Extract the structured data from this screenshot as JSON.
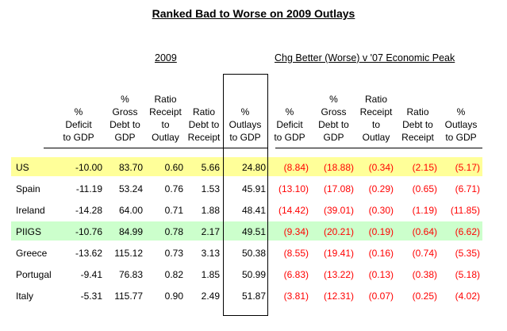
{
  "title": "Ranked Bad to Worse on 2009 Outlays",
  "colors": {
    "highlight_yellow": "#FFFF99",
    "highlight_green": "#CCFFCC",
    "negative_red": "#FF0000",
    "text_black": "#000000"
  },
  "chart_data": {
    "type": "table",
    "title": "Ranked Bad to Worse on 2009 Outlays",
    "section_headers": [
      "2009",
      "Chg Better (Worse) v '07 Economic Peak"
    ],
    "columns_per_section": [
      "% Deficit to GDP",
      "% Gross Debt to GDP",
      "Ratio Receipt to Outlay",
      "Ratio Debt to Receipt",
      "% Outlays to GDP"
    ],
    "header_lines_left": [
      "%\nDeficit\nto GDP",
      "%\nGross\nDebt to\nGDP",
      "Ratio\nReceipt\nto\nOutlay",
      "Ratio\nDebt to\nReceipt",
      "%\nOutlays\nto GDP"
    ],
    "header_lines_right": [
      "%\nDeficit\nto GDP",
      "%\nGross\nDebt to\nGDP",
      "Ratio\nReceipt\nto\nOutlay",
      "Ratio\nDebt to\nReceipt",
      "%\nOutlays\nto GDP"
    ],
    "rows": [
      {
        "label": "US",
        "highlight": "yellow",
        "values_2009": [
          "-10.00",
          "83.70",
          "0.60",
          "5.66",
          "24.80"
        ],
        "values_chg": [
          "(8.84)",
          "(18.88)",
          "(0.34)",
          "(2.15)",
          "(5.17)"
        ]
      },
      {
        "label": "Spain",
        "highlight": null,
        "values_2009": [
          "-11.19",
          "53.24",
          "0.76",
          "1.53",
          "45.91"
        ],
        "values_chg": [
          "(13.10)",
          "(17.08)",
          "(0.29)",
          "(0.65)",
          "(6.71)"
        ]
      },
      {
        "label": "Ireland",
        "highlight": null,
        "values_2009": [
          "-14.28",
          "64.00",
          "0.71",
          "1.88",
          "48.41"
        ],
        "values_chg": [
          "(14.42)",
          "(39.01)",
          "(0.30)",
          "(1.19)",
          "(11.85)"
        ]
      },
      {
        "label": "PIIGS",
        "highlight": "green",
        "values_2009": [
          "-10.76",
          "84.99",
          "0.78",
          "2.17",
          "49.51"
        ],
        "values_chg": [
          "(9.34)",
          "(20.21)",
          "(0.19)",
          "(0.64)",
          "(6.62)"
        ]
      },
      {
        "label": "Greece",
        "highlight": null,
        "values_2009": [
          "-13.62",
          "115.12",
          "0.73",
          "3.13",
          "50.38"
        ],
        "values_chg": [
          "(8.55)",
          "(19.41)",
          "(0.16)",
          "(0.74)",
          "(5.35)"
        ]
      },
      {
        "label": "Portugal",
        "highlight": null,
        "values_2009": [
          "-9.41",
          "76.83",
          "0.82",
          "1.85",
          "50.99"
        ],
        "values_chg": [
          "(6.83)",
          "(13.22)",
          "(0.13)",
          "(0.38)",
          "(5.18)"
        ]
      },
      {
        "label": "Italy",
        "highlight": null,
        "values_2009": [
          "-5.31",
          "115.77",
          "0.90",
          "2.49",
          "51.87"
        ],
        "values_chg": [
          "(3.81)",
          "(12.31)",
          "(0.07)",
          "(0.25)",
          "(4.02)"
        ]
      }
    ]
  }
}
